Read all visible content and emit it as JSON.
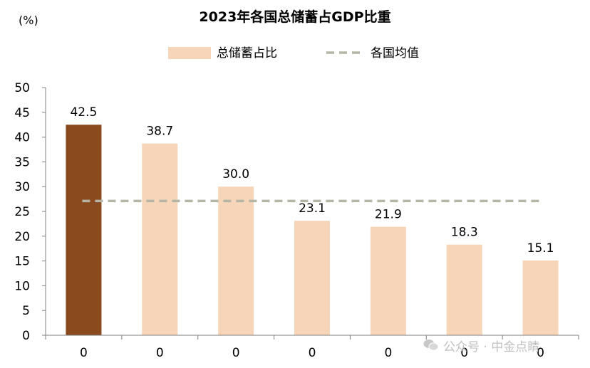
{
  "chart_data": {
    "type": "bar",
    "title": "2023年各国总储蓄占GDP比重",
    "ylabel": "(%)",
    "xlabel": "",
    "ylim": [
      0,
      50
    ],
    "yticks": [
      0,
      5,
      10,
      15,
      20,
      25,
      30,
      35,
      40,
      45,
      50
    ],
    "categories": [
      "0",
      "0",
      "0",
      "0",
      "0",
      "0",
      "0"
    ],
    "series": [
      {
        "name": "总储蓄占比",
        "values": [
          42.5,
          38.7,
          30.0,
          23.1,
          21.9,
          18.3,
          15.1
        ]
      }
    ],
    "value_labels": [
      "42.5",
      "38.7",
      "30.0",
      "23.1",
      "21.9",
      "18.3",
      "15.1"
    ],
    "reference_line": {
      "name": "各国均值",
      "value": 27.1,
      "style": "dashed"
    },
    "legend_position": "top-center",
    "grid": false,
    "colors": {
      "highlight_bar": "#8b4a1e",
      "bar": "#f6d5b8",
      "average_line": "#b5b5a5"
    }
  },
  "watermark": {
    "text": "公众号 · 中金点睛",
    "icon": "wechat-icon"
  }
}
